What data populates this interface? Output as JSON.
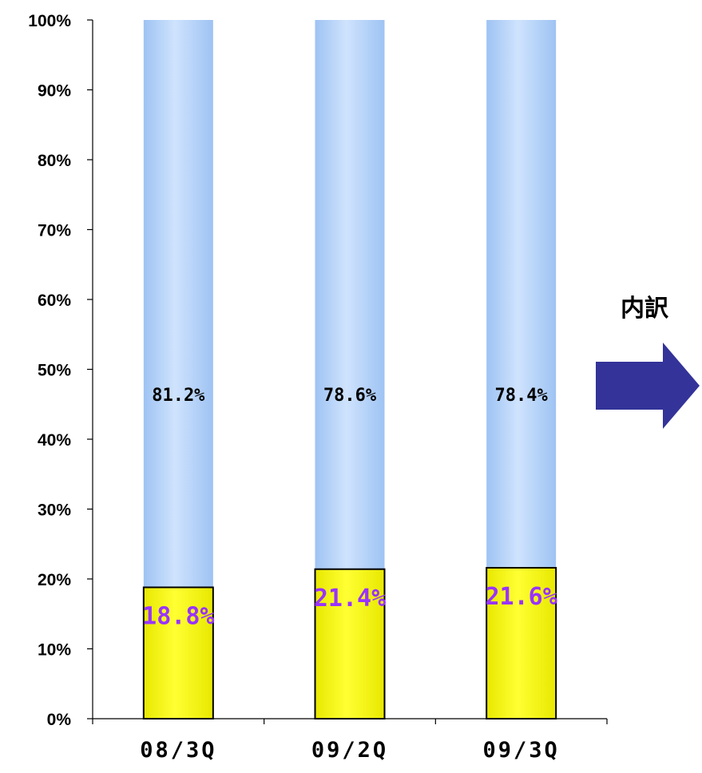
{
  "chart_data": {
    "type": "bar",
    "stacked": true,
    "categories": [
      "08/3Q",
      "09/2Q",
      "09/3Q"
    ],
    "series": [
      {
        "values": [
          18.8,
          21.4,
          21.6
        ],
        "labels": [
          "18.8%",
          "21.4%",
          "21.6%"
        ],
        "color": "#ffff00"
      },
      {
        "values": [
          81.2,
          78.6,
          78.4
        ],
        "labels": [
          "81.2%",
          "78.6%",
          "78.4%"
        ],
        "color": "#a9cdf8"
      }
    ],
    "ylim": [
      0,
      100
    ],
    "yticks": [
      "0%",
      "10%",
      "20%",
      "30%",
      "40%",
      "50%",
      "60%",
      "70%",
      "80%",
      "90%",
      "100%"
    ],
    "grid": false,
    "bottom_label_color": "#9933ff"
  },
  "annotation": {
    "text": "内訳",
    "arrow_color": "#333399"
  }
}
